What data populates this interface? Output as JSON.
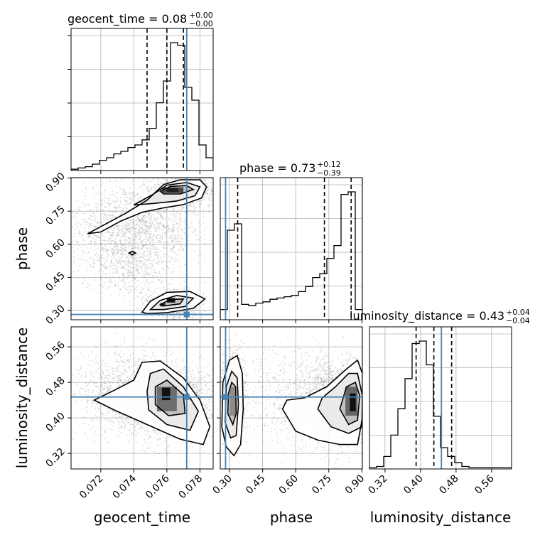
{
  "colors": {
    "truth": "#4682b4",
    "hist": "#000000",
    "grid": "#b0b0b0",
    "scatter": "#7f7f7f"
  },
  "chart_data": {
    "type": "corner",
    "parameters": [
      "geocent_time",
      "phase",
      "luminosity_distance"
    ],
    "truths": {
      "geocent_time": 0.0772,
      "phase": 0.282,
      "luminosity_distance": 0.447
    },
    "ranges": {
      "geocent_time": [
        0.0702,
        0.0788
      ],
      "phase": [
        0.258,
        0.902
      ],
      "luminosity_distance": [
        0.285,
        0.605
      ]
    },
    "ticks": {
      "geocent_time": {
        "values": [
          0.072,
          0.074,
          0.076,
          0.078
        ],
        "labels": [
          "0.072",
          "0.074",
          "0.076",
          "0.078"
        ]
      },
      "phase": {
        "values": [
          0.3,
          0.45,
          0.6,
          0.75,
          0.9
        ],
        "labels": [
          "0.30",
          "0.45",
          "0.60",
          "0.75",
          "0.90"
        ]
      },
      "luminosity_distance": {
        "values": [
          0.32,
          0.4,
          0.48,
          0.56
        ],
        "labels": [
          "0.32",
          "0.40",
          "0.48",
          "0.56"
        ]
      }
    },
    "titles": [
      {
        "param": "geocent_time",
        "prefix": "geocent_time = 0.08",
        "plus": "+0.00",
        "minus": "−0.00"
      },
      {
        "param": "phase",
        "prefix": "phase = 0.73",
        "plus": "+0.12",
        "minus": "−0.39"
      },
      {
        "param": "luminosity_distance",
        "prefix": "luminosity_distance = 0.43",
        "plus": "+0.04",
        "minus": "−0.04"
      }
    ],
    "quantiles": {
      "geocent_time": [
        0.0748,
        0.076,
        0.077
      ],
      "phase": [
        0.337,
        0.73,
        0.851
      ],
      "luminosity_distance": [
        0.39,
        0.43,
        0.47
      ]
    },
    "histograms": {
      "geocent_time": {
        "x0": 0.0702,
        "dx": 0.00043,
        "counts": [
          1,
          2,
          3,
          5,
          8,
          10,
          13,
          15,
          18,
          20,
          24,
          33,
          53,
          70,
          100,
          98,
          65,
          55,
          20,
          10
        ]
      },
      "phase": {
        "x0": 0.258,
        "dx": 0.0322,
        "counts": [
          8,
          70,
          75,
          12,
          11,
          13,
          14,
          16,
          17,
          18,
          19,
          22,
          26,
          33,
          36,
          48,
          58,
          98,
          100,
          8
        ]
      },
      "luminosity_distance": {
        "x0": 0.285,
        "dx": 0.016,
        "counts": [
          1,
          2,
          10,
          27,
          48,
          72,
          100,
          102,
          83,
          42,
          17,
          10,
          5,
          2,
          1,
          1,
          1,
          1,
          1,
          1
        ]
      }
    },
    "contour_sets": [
      {
        "x": "geocent_time",
        "y": "phase",
        "contours": [
          {
            "level": 1,
            "points": [
              [
                0.0712,
                0.648
              ],
              [
                0.072,
                0.68
              ],
              [
                0.0735,
                0.74
              ],
              [
                0.0748,
                0.8
              ],
              [
                0.0758,
                0.87
              ],
              [
                0.0768,
                0.892
              ],
              [
                0.078,
                0.892
              ],
              [
                0.0784,
                0.86
              ],
              [
                0.0781,
                0.81
              ],
              [
                0.077,
                0.78
              ],
              [
                0.0758,
                0.765
              ],
              [
                0.0745,
                0.745
              ],
              [
                0.0732,
                0.705
              ],
              [
                0.072,
                0.656
              ]
            ]
          },
          {
            "level": 2,
            "points": [
              [
                0.074,
                0.778
              ],
              [
                0.0752,
                0.828
              ],
              [
                0.076,
                0.868
              ],
              [
                0.0772,
                0.88
              ],
              [
                0.078,
                0.86
              ],
              [
                0.0777,
                0.82
              ],
              [
                0.0766,
                0.796
              ],
              [
                0.0752,
                0.785
              ]
            ]
          },
          {
            "level": 3,
            "points": [
              [
                0.0756,
                0.84
              ],
              [
                0.0762,
                0.862
              ],
              [
                0.0772,
                0.866
              ],
              [
                0.0776,
                0.848
              ],
              [
                0.0768,
                0.828
              ],
              [
                0.0758,
                0.828
              ]
            ]
          },
          {
            "level": 1,
            "points": [
              [
                0.0745,
                0.292
              ],
              [
                0.075,
                0.342
              ],
              [
                0.076,
                0.382
              ],
              [
                0.0774,
                0.386
              ],
              [
                0.0783,
                0.352
              ],
              [
                0.0776,
                0.31
              ],
              [
                0.076,
                0.29
              ],
              [
                0.0748,
                0.286
              ]
            ]
          },
          {
            "level": 2,
            "points": [
              [
                0.075,
                0.304
              ],
              [
                0.0756,
                0.346
              ],
              [
                0.0766,
                0.368
              ],
              [
                0.0776,
                0.356
              ],
              [
                0.0771,
                0.318
              ],
              [
                0.0758,
                0.304
              ]
            ]
          },
          {
            "level": 3,
            "points": [
              [
                0.0756,
                0.326
              ],
              [
                0.0762,
                0.35
              ],
              [
                0.077,
                0.352
              ],
              [
                0.0768,
                0.33
              ],
              [
                0.076,
                0.322
              ]
            ]
          },
          {
            "level": 3,
            "points": [
              [
                0.0737,
                0.56
              ],
              [
                0.0739,
                0.568
              ],
              [
                0.0741,
                0.56
              ],
              [
                0.0739,
                0.551
              ]
            ]
          }
        ]
      },
      {
        "x": "geocent_time",
        "y": "luminosity_distance",
        "contours": [
          {
            "level": 1,
            "points": [
              [
                0.0716,
                0.44
              ],
              [
                0.0728,
                0.418
              ],
              [
                0.0748,
                0.385
              ],
              [
                0.0768,
                0.352
              ],
              [
                0.0782,
                0.34
              ],
              [
                0.0786,
                0.38
              ],
              [
                0.078,
                0.44
              ],
              [
                0.077,
                0.49
              ],
              [
                0.0756,
                0.528
              ],
              [
                0.0745,
                0.525
              ],
              [
                0.074,
                0.485
              ],
              [
                0.0728,
                0.462
              ]
            ]
          },
          {
            "level": 2,
            "points": [
              [
                0.0749,
                0.418
              ],
              [
                0.076,
                0.385
              ],
              [
                0.0774,
                0.372
              ],
              [
                0.0779,
                0.415
              ],
              [
                0.077,
                0.47
              ],
              [
                0.0758,
                0.51
              ],
              [
                0.075,
                0.5
              ],
              [
                0.0748,
                0.46
              ]
            ]
          },
          {
            "level": 3,
            "points": [
              [
                0.0753,
                0.43
              ],
              [
                0.0761,
                0.405
              ],
              [
                0.0771,
                0.41
              ],
              [
                0.077,
                0.452
              ],
              [
                0.076,
                0.485
              ],
              [
                0.0753,
                0.47
              ]
            ]
          }
        ]
      },
      {
        "x": "phase",
        "y": "luminosity_distance",
        "contours": [
          {
            "level": 1,
            "points": [
              [
                0.265,
                0.38
              ],
              [
                0.285,
                0.335
              ],
              [
                0.32,
                0.315
              ],
              [
                0.35,
                0.34
              ],
              [
                0.362,
                0.42
              ],
              [
                0.358,
                0.5
              ],
              [
                0.335,
                0.54
              ],
              [
                0.3,
                0.53
              ],
              [
                0.27,
                0.48
              ]
            ]
          },
          {
            "level": 2,
            "points": [
              [
                0.28,
                0.39
              ],
              [
                0.305,
                0.355
              ],
              [
                0.33,
                0.36
              ],
              [
                0.34,
                0.43
              ],
              [
                0.335,
                0.49
              ],
              [
                0.31,
                0.505
              ],
              [
                0.285,
                0.47
              ]
            ]
          },
          {
            "level": 3,
            "points": [
              [
                0.292,
                0.41
              ],
              [
                0.315,
                0.385
              ],
              [
                0.33,
                0.41
              ],
              [
                0.328,
                0.47
              ],
              [
                0.31,
                0.48
              ],
              [
                0.295,
                0.455
              ]
            ]
          },
          {
            "level": 1,
            "points": [
              [
                0.54,
                0.42
              ],
              [
                0.6,
                0.37
              ],
              [
                0.7,
                0.35
              ],
              [
                0.8,
                0.34
              ],
              [
                0.88,
                0.34
              ],
              [
                0.902,
                0.4
              ],
              [
                0.902,
                0.5
              ],
              [
                0.88,
                0.53
              ],
              [
                0.83,
                0.51
              ],
              [
                0.74,
                0.47
              ],
              [
                0.64,
                0.445
              ],
              [
                0.56,
                0.44
              ]
            ]
          },
          {
            "level": 2,
            "points": [
              [
                0.7,
                0.42
              ],
              [
                0.76,
                0.38
              ],
              [
                0.84,
                0.365
              ],
              [
                0.9,
                0.38
              ],
              [
                0.902,
                0.45
              ],
              [
                0.88,
                0.5
              ],
              [
                0.84,
                0.5
              ],
              [
                0.78,
                0.47
              ],
              [
                0.72,
                0.445
              ]
            ]
          },
          {
            "level": 3,
            "points": [
              [
                0.8,
                0.42
              ],
              [
                0.84,
                0.385
              ],
              [
                0.88,
                0.395
              ],
              [
                0.89,
                0.45
              ],
              [
                0.87,
                0.48
              ],
              [
                0.83,
                0.47
              ]
            ]
          }
        ]
      }
    ],
    "density_blocks": [
      {
        "x": "geocent_time",
        "y": "phase",
        "blocks": [
          {
            "x0": 0.0757,
            "x1": 0.077,
            "y0": 0.832,
            "y1": 0.858,
            "shade": "#4a4a4a"
          },
          {
            "x0": 0.076,
            "x1": 0.0767,
            "y0": 0.836,
            "y1": 0.854,
            "shade": "#1f1f1f"
          },
          {
            "x0": 0.076,
            "x1": 0.0765,
            "y0": 0.336,
            "y1": 0.356,
            "shade": "#111111"
          },
          {
            "x0": 0.0756,
            "x1": 0.0759,
            "y0": 0.318,
            "y1": 0.334,
            "shade": "#333333"
          }
        ]
      },
      {
        "x": "geocent_time",
        "y": "luminosity_distance",
        "blocks": [
          {
            "x0": 0.0754,
            "x1": 0.0766,
            "y0": 0.415,
            "y1": 0.47,
            "shade": "#6d6d6d"
          },
          {
            "x0": 0.0757,
            "x1": 0.0762,
            "y0": 0.44,
            "y1": 0.468,
            "shade": "#111111"
          }
        ]
      },
      {
        "x": "phase",
        "y": "luminosity_distance",
        "blocks": [
          {
            "x0": 0.3,
            "x1": 0.33,
            "y0": 0.405,
            "y1": 0.47,
            "shade": "#8c8c8c"
          },
          {
            "x0": 0.825,
            "x1": 0.88,
            "y0": 0.405,
            "y1": 0.47,
            "shade": "#666666"
          },
          {
            "x0": 0.845,
            "x1": 0.872,
            "y0": 0.415,
            "y1": 0.455,
            "shade": "#111111"
          }
        ]
      }
    ]
  }
}
